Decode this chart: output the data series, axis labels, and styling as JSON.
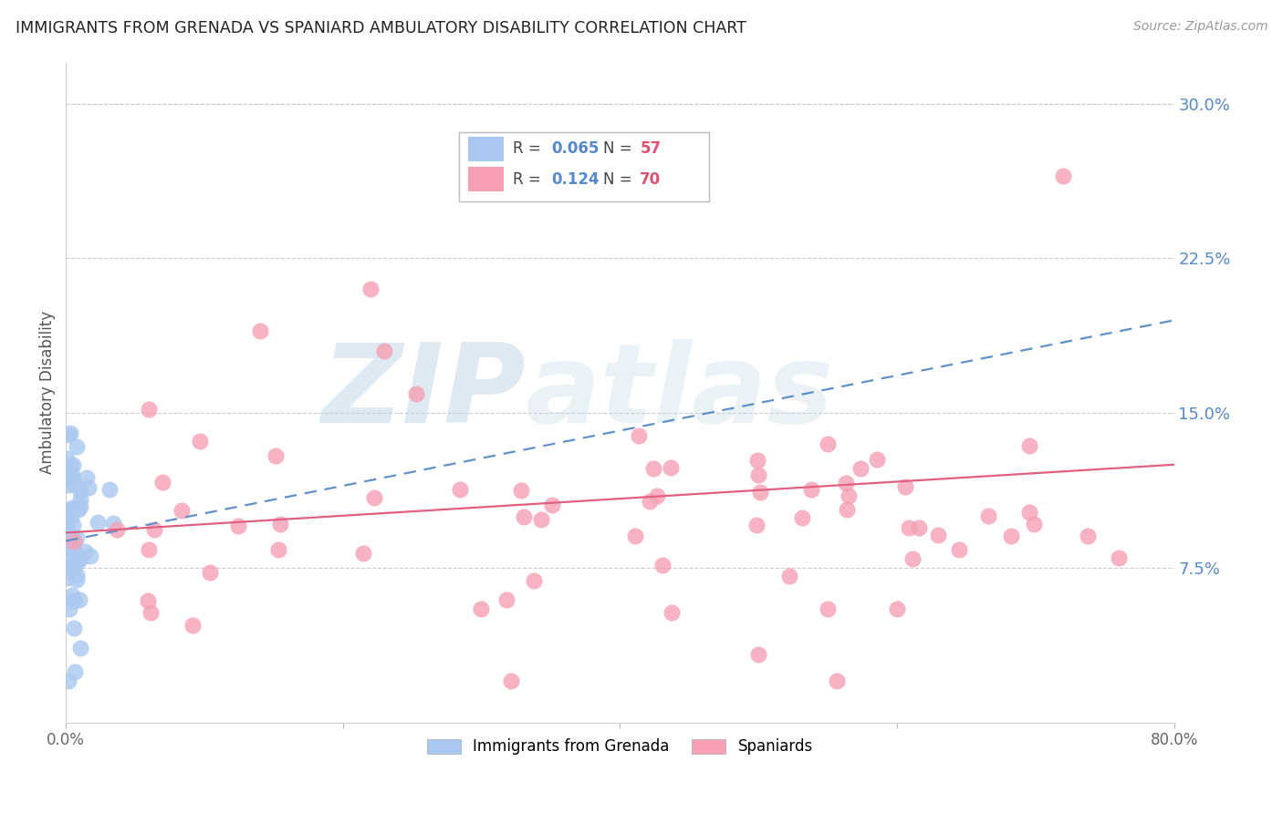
{
  "title": "IMMIGRANTS FROM GRENADA VS SPANIARD AMBULATORY DISABILITY CORRELATION CHART",
  "source": "Source: ZipAtlas.com",
  "ylabel": "Ambulatory Disability",
  "ytick_labels": [
    "7.5%",
    "15.0%",
    "22.5%",
    "30.0%"
  ],
  "ytick_values": [
    0.075,
    0.15,
    0.225,
    0.3
  ],
  "xlim": [
    0.0,
    0.8
  ],
  "ylim": [
    0.0,
    0.32
  ],
  "legend_r_grenada": "R = 0.065",
  "legend_n_grenada": "N = 57",
  "legend_r_spaniard": "R = 0.124",
  "legend_n_spaniard": "N = 70",
  "grenada_color": "#aac8f0",
  "spaniard_color": "#f5a0b5",
  "grenada_line_color": "#6090c8",
  "spaniard_line_color": "#e06080",
  "background_color": "#ffffff",
  "watermark_zip": "ZIP",
  "watermark_atlas": "atlas",
  "grenada_N": 57,
  "spaniard_N": 70,
  "grenada_line_x": [
    0.0,
    0.8
  ],
  "grenada_line_y": [
    0.088,
    0.195
  ],
  "spaniard_line_x": [
    0.0,
    0.8
  ],
  "spaniard_line_y": [
    0.092,
    0.125
  ]
}
